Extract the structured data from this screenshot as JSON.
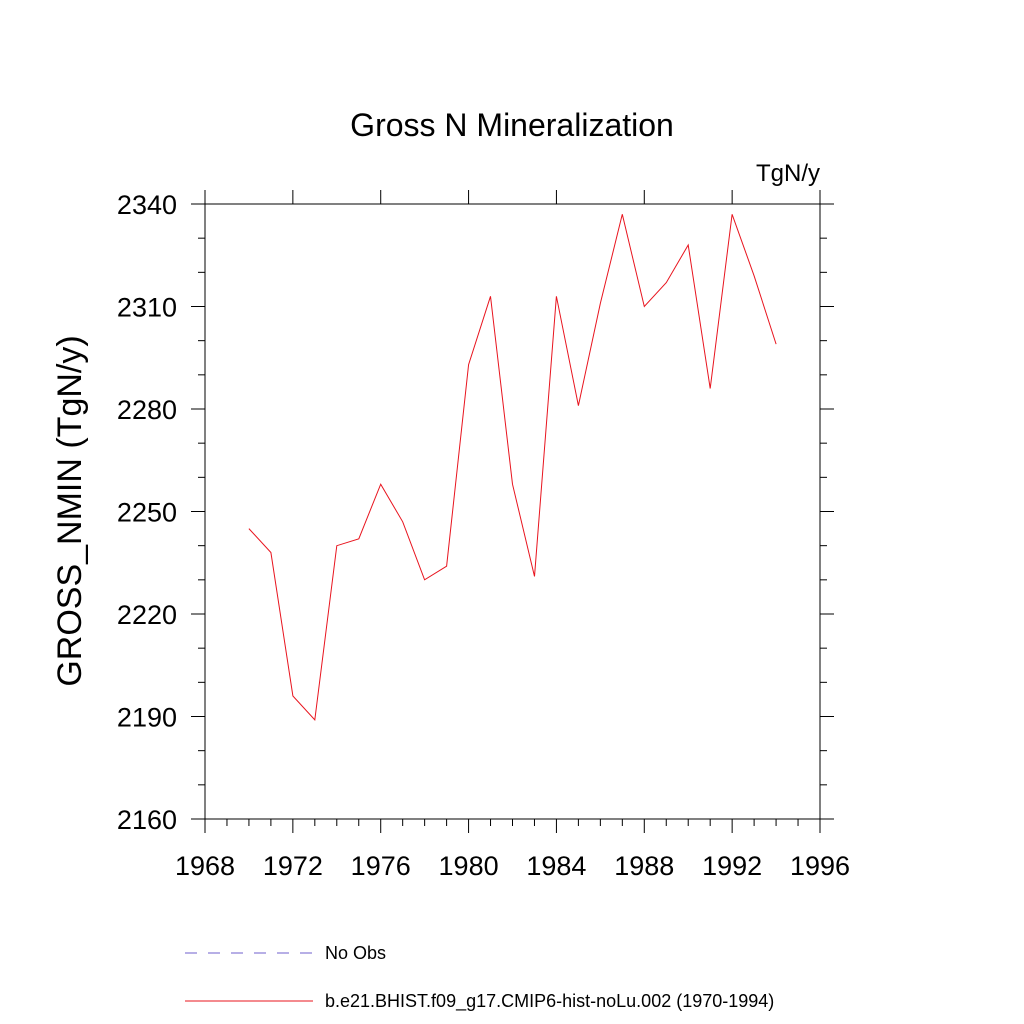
{
  "chart_data": {
    "type": "line",
    "title": "Gross N Mineralization",
    "units_label": "TgN/y",
    "xlabel": "",
    "ylabel": "GROSS_NMIN  (TgN/y)",
    "xlim": [
      1968,
      1996
    ],
    "ylim": [
      2160,
      2340
    ],
    "xticks": [
      1968,
      1972,
      1976,
      1980,
      1984,
      1988,
      1992,
      1996
    ],
    "yticks": [
      2160,
      2190,
      2220,
      2250,
      2280,
      2310,
      2340
    ],
    "grid": false,
    "legend_position": "bottom",
    "series": [
      {
        "name": "No Obs",
        "color": "#8c7fd6",
        "style": "dashed",
        "x": [],
        "y": []
      },
      {
        "name": "b.e21.BHIST.f09_g17.CMIP6-hist-noLu.002 (1970-1994)",
        "color": "#e8141e",
        "style": "solid",
        "x": [
          1970,
          1971,
          1972,
          1973,
          1974,
          1975,
          1976,
          1977,
          1978,
          1979,
          1980,
          1981,
          1982,
          1983,
          1984,
          1985,
          1986,
          1987,
          1988,
          1989,
          1990,
          1991,
          1992,
          1993,
          1994
        ],
        "y": [
          2245,
          2238,
          2196,
          2189,
          2240,
          2242,
          2258,
          2247,
          2230,
          2234,
          2293,
          2313,
          2258,
          2231,
          2313,
          2281,
          2311,
          2337,
          2310,
          2317,
          2328,
          2286,
          2337,
          2319,
          2299
        ]
      }
    ]
  }
}
